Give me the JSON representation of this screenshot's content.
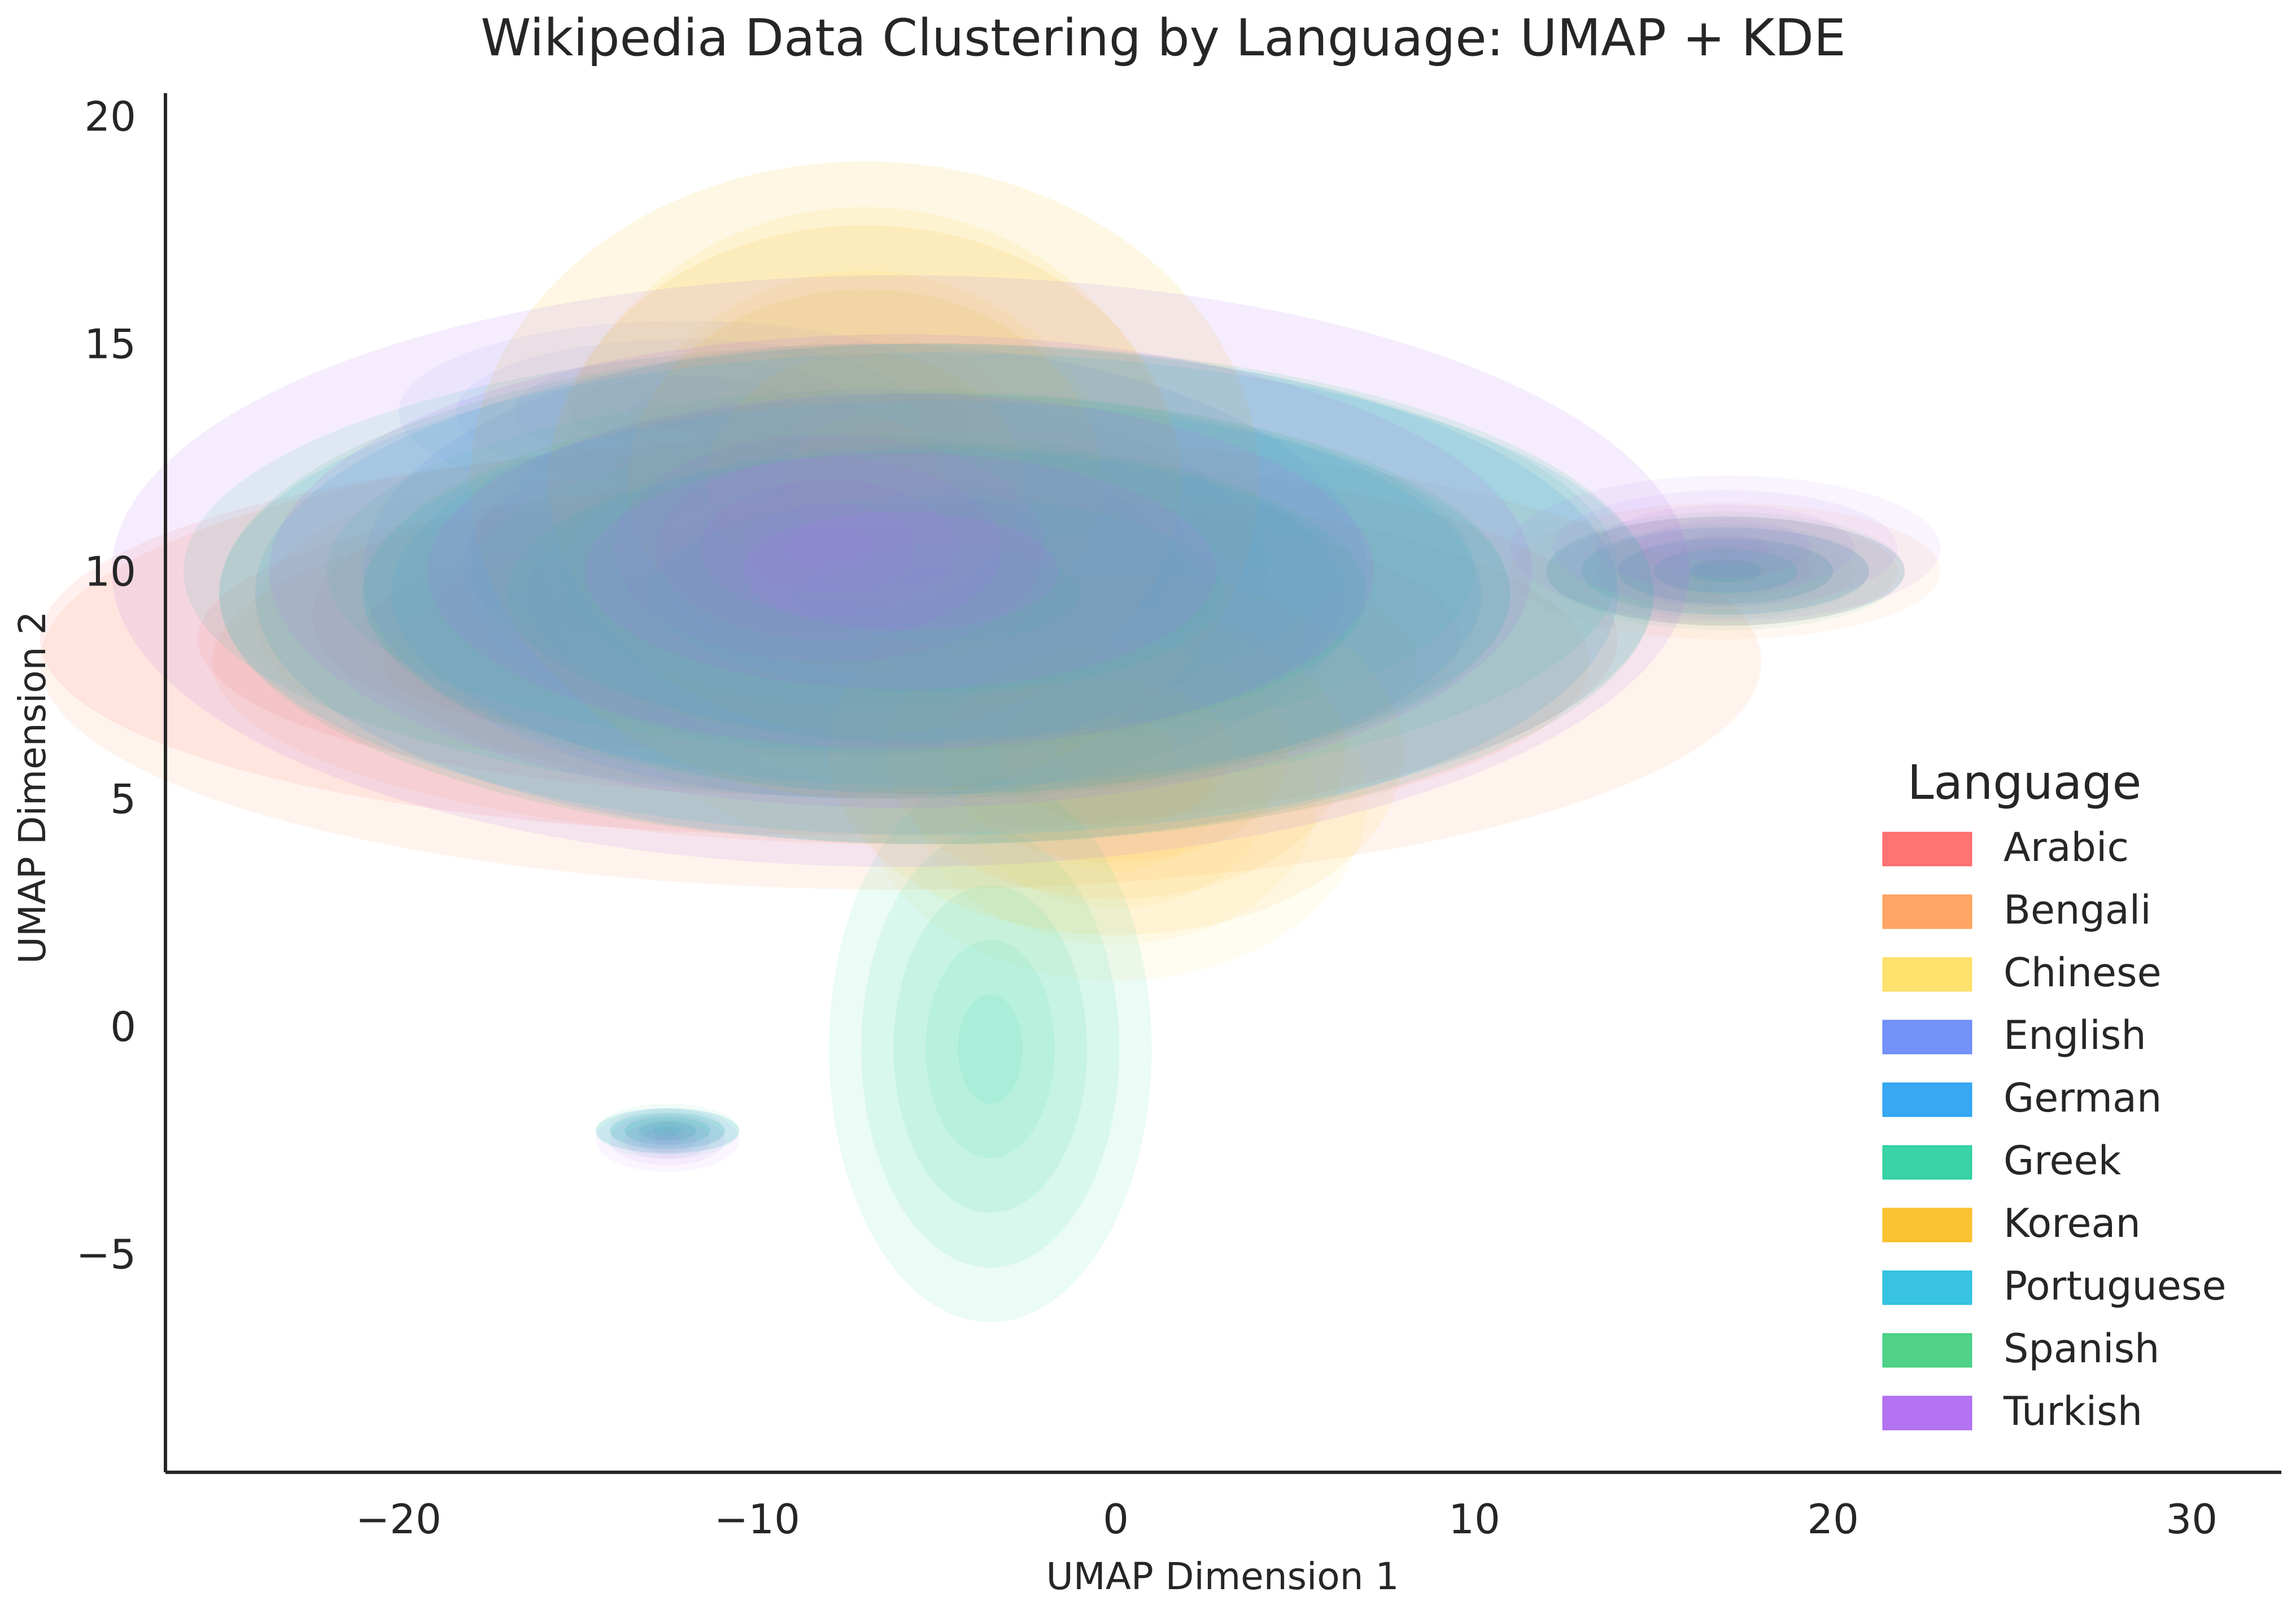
{
  "chart_data": {
    "type": "kde-density",
    "title": "Wikipedia Data Clustering by Language: UMAP + KDE",
    "xlabel": "UMAP Dimension 1",
    "ylabel": "UMAP Dimension 2",
    "xlim": [
      -26.5,
      32.5
    ],
    "ylim": [
      -9.8,
      20.5
    ],
    "xticks": [
      -20,
      -10,
      0,
      10,
      20,
      30
    ],
    "xtick_labels": [
      "−20",
      "−10",
      "0",
      "10",
      "20",
      "30"
    ],
    "yticks": [
      -5,
      0,
      5,
      10,
      15,
      20
    ],
    "ytick_labels": [
      "−5",
      "0",
      "5",
      "10",
      "15",
      "20"
    ],
    "grid": false,
    "legend_title": "Language",
    "legend_position": "center-right",
    "series": [
      {
        "name": "Arabic",
        "color": "#ff6b6b",
        "blobs": [
          {
            "x": -8,
            "y": 8.5,
            "rx": 22,
            "ry": 4.3,
            "w": 0.5
          },
          {
            "x": 17,
            "y": 10,
            "rx": 5,
            "ry": 1.2,
            "w": 0.2
          },
          {
            "x": -8,
            "y": 10.5,
            "rx": 10,
            "ry": 2.5,
            "w": 0.3
          }
        ]
      },
      {
        "name": "Bengali",
        "color": "#ffa15e",
        "blobs": [
          {
            "x": -6,
            "y": 8.0,
            "rx": 24,
            "ry": 5.0,
            "w": 0.55
          },
          {
            "x": 17,
            "y": 10,
            "rx": 6,
            "ry": 1.5,
            "w": 0.25
          },
          {
            "x": -16,
            "y": 9,
            "rx": 8,
            "ry": 3,
            "w": 0.2
          }
        ]
      },
      {
        "name": "Chinese",
        "color": "#ffe066",
        "blobs": [
          {
            "x": -7,
            "y": 11,
            "rx": 9,
            "ry": 7,
            "w": 0.7
          },
          {
            "x": 0,
            "y": 5,
            "rx": 7,
            "ry": 4,
            "w": 0.3
          }
        ]
      },
      {
        "name": "English",
        "color": "#6c8dfa",
        "blobs": [
          {
            "x": -7,
            "y": 10,
            "rx": 14,
            "ry": 5,
            "w": 0.8
          },
          {
            "x": -12,
            "y": 13.5,
            "rx": 8,
            "ry": 2,
            "w": 0.2
          }
        ]
      },
      {
        "name": "German",
        "color": "#2ea3f2",
        "blobs": [
          {
            "x": -5,
            "y": 9.5,
            "rx": 19,
            "ry": 5.5,
            "w": 0.8
          },
          {
            "x": 17,
            "y": 10,
            "rx": 5,
            "ry": 1.2,
            "w": 0.15
          },
          {
            "x": -12.5,
            "y": -2.3,
            "rx": 2,
            "ry": 0.5,
            "w": 0.05
          }
        ]
      },
      {
        "name": "Greek",
        "color": "#2ed1a2",
        "blobs": [
          {
            "x": -6,
            "y": 10,
            "rx": 20,
            "ry": 5,
            "w": 0.6
          },
          {
            "x": -3.5,
            "y": -0.5,
            "rx": 4.5,
            "ry": 6,
            "w": 0.35
          },
          {
            "x": -12.5,
            "y": -2.3,
            "rx": 2,
            "ry": 0.6,
            "w": 0.05
          }
        ]
      },
      {
        "name": "Korean",
        "color": "#fbbf2a",
        "blobs": [
          {
            "x": -7,
            "y": 12,
            "rx": 11,
            "ry": 7,
            "w": 0.7
          },
          {
            "x": 0,
            "y": 6,
            "rx": 8,
            "ry": 4,
            "w": 0.3
          }
        ]
      },
      {
        "name": "Portuguese",
        "color": "#2ec0e0",
        "blobs": [
          {
            "x": -5,
            "y": 9.5,
            "rx": 20,
            "ry": 5.3,
            "w": 0.8
          },
          {
            "x": 17,
            "y": 10,
            "rx": 5,
            "ry": 1.2,
            "w": 0.15
          },
          {
            "x": -12.5,
            "y": -2.3,
            "rx": 2,
            "ry": 0.5,
            "w": 0.05
          }
        ]
      },
      {
        "name": "Spanish",
        "color": "#48d083",
        "blobs": [
          {
            "x": -5,
            "y": 9.5,
            "rx": 20,
            "ry": 5.5,
            "w": 0.8
          },
          {
            "x": 17,
            "y": 10,
            "rx": 5,
            "ry": 1.3,
            "w": 0.15
          },
          {
            "x": -12.5,
            "y": -2.3,
            "rx": 2,
            "ry": 0.5,
            "w": 0.05
          }
        ]
      },
      {
        "name": "Turkish",
        "color": "#b06cf2",
        "blobs": [
          {
            "x": -6,
            "y": 10,
            "rx": 22,
            "ry": 6.5,
            "w": 0.65
          },
          {
            "x": -8,
            "y": 10.5,
            "rx": 6,
            "ry": 2.5,
            "w": 0.15
          },
          {
            "x": 17,
            "y": 10.5,
            "rx": 6,
            "ry": 1.6,
            "w": 0.15
          },
          {
            "x": -12.5,
            "y": -2.5,
            "rx": 2,
            "ry": 0.7,
            "w": 0.05
          }
        ]
      }
    ]
  }
}
